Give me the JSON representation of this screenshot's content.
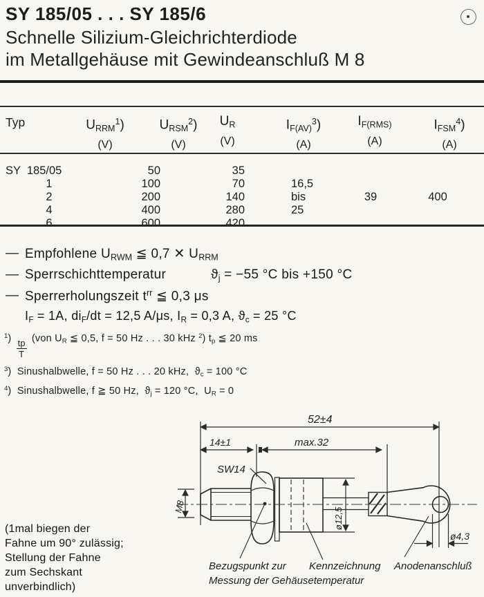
{
  "header": {
    "title": "SY 185/05 . . . SY 185/6",
    "subtitle_line1": "Schnelle Silizium-Gleichrichterdiode",
    "subtitle_line2": "im Metallgehäuse mit Gewindeanschluß M 8",
    "registration_mark_icon": "circled-dot"
  },
  "table": {
    "col_typ": "Typ",
    "headers": [
      {
        "sym": [
          [
            "U"
          ],
          [
            "RRM",
            "sub"
          ],
          [
            "1",
            "sup"
          ],
          [
            ")"
          ]
        ],
        "unit": "(V)"
      },
      {
        "sym": [
          [
            "U"
          ],
          [
            "RSM",
            "sub"
          ],
          [
            "2",
            "sup"
          ],
          [
            ")"
          ]
        ],
        "unit": "(V)"
      },
      {
        "sym": [
          [
            "U"
          ],
          [
            "R",
            "sub"
          ]
        ],
        "unit": "(V)"
      },
      {
        "sym": [
          [
            "I"
          ],
          [
            "F(AV)",
            "sub"
          ],
          [
            "3",
            "sup"
          ],
          [
            ")"
          ]
        ],
        "unit": "(A)"
      },
      {
        "sym": [
          [
            "I"
          ],
          [
            "F(RMS)",
            "sub"
          ]
        ],
        "unit": "(A)"
      },
      {
        "sym": [
          [
            "I"
          ],
          [
            "FSM",
            "sub"
          ],
          [
            "4",
            "sup"
          ],
          [
            ")"
          ]
        ],
        "unit": "(A)"
      }
    ],
    "rows": [
      {
        "typ": "SY  185/05",
        "urrm": "50",
        "ur": "35"
      },
      {
        "typ": "1",
        "urrm": "100",
        "ur": "70",
        "ifav": "16,5"
      },
      {
        "typ": "2",
        "urrm": "200",
        "ur": "140",
        "ifav": "bis",
        "ifrms": "39",
        "ifsm": "400"
      },
      {
        "typ": "4",
        "urrm": "400",
        "ur": "280",
        "ifav": "25"
      },
      {
        "typ": "6",
        "urrm": "600",
        "ur": "420"
      }
    ]
  },
  "notes": {
    "dash": "—",
    "n1": [
      [
        "Empfohlene U"
      ],
      [
        "RWM",
        "sub"
      ],
      [
        " ≦ 0,7 ✕ U"
      ],
      [
        "RRM",
        "sub"
      ]
    ],
    "n2_label": "Sperrschichttemperatur",
    "n2_value": [
      [
        "ϑ"
      ],
      [
        "j",
        "sub"
      ],
      [
        " = −55 °C bis +150 °C"
      ]
    ],
    "n3": [
      [
        "Sperrerholungszeit t"
      ],
      [
        "rr",
        "sup"
      ],
      [
        " ≦ 0,3 μs"
      ]
    ],
    "n4": [
      [
        "I"
      ],
      [
        "F",
        "sub"
      ],
      [
        " = 1A, di"
      ],
      [
        "F",
        "sub"
      ],
      [
        "/dt = 12,5 A/μs, I"
      ],
      [
        "R",
        "sub"
      ],
      [
        " = 0,3 A, ϑ"
      ],
      [
        "c",
        "sub"
      ],
      [
        " = 25 °C"
      ]
    ]
  },
  "footnotes": {
    "f1": [
      [
        "1",
        "sup"
      ],
      [
        ") "
      ],
      [
        "tp|T",
        "frac"
      ],
      [
        " (von U"
      ],
      [
        "R",
        "sub"
      ],
      [
        " ≦ 0,5, f = 50 Hz . . . 30 kHz "
      ],
      [
        "2",
        "sup"
      ],
      [
        ") t"
      ],
      [
        "p",
        "sub"
      ],
      [
        " ≦ 20 ms"
      ]
    ],
    "f3": [
      [
        "3",
        "sup"
      ],
      [
        ")  Sinushalbwelle, f = 50 Hz . . . 20 kHz,  ϑ"
      ],
      [
        "c",
        "sub"
      ],
      [
        " = 100 °C"
      ]
    ],
    "f4": [
      [
        "4",
        "sup"
      ],
      [
        ")  Sinushalbwelle, f ≧ 50 Hz,  ϑ"
      ],
      [
        "j",
        "sub"
      ],
      [
        " = 120 °C,  U"
      ],
      [
        "R",
        "sub"
      ],
      [
        " = 0"
      ]
    ]
  },
  "drawing": {
    "dim_overall": "52±4",
    "dim_stud": "14±1",
    "dim_body": "max.32",
    "wrench_size": "SW14",
    "thread": "M8",
    "dia_body": "ø12,5",
    "dia_hole": "ø4,3",
    "label_ref_1": "Bezugspunkt zur",
    "label_ref_2": "Messung der Gehäusetemperatur",
    "label_marking": "Kennzeichnung",
    "label_anode": "Anodenanschluß",
    "flag_note": [
      "(1mal biegen der",
      "Fahne um 90° zulässig;",
      "Stellung der Fahne",
      "zum Sechskant",
      "unverbindlich)"
    ]
  }
}
